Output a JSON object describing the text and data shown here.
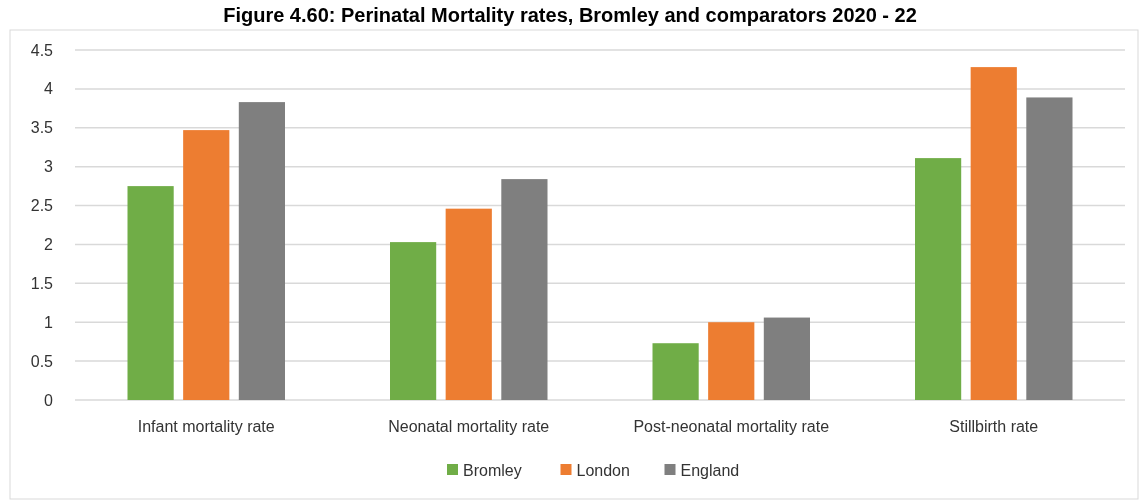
{
  "chart_data": {
    "type": "bar",
    "title": "Figure 4.60: Perinatal Mortality rates, Bromley and comparators 2020 - 22",
    "categories": [
      "Infant mortality rate",
      "Neonatal mortality rate",
      "Post-neonatal mortality rate",
      "Stillbirth rate"
    ],
    "series": [
      {
        "name": "Bromley",
        "color": "#70ad47",
        "values": [
          2.75,
          2.03,
          0.73,
          3.11
        ]
      },
      {
        "name": "London",
        "color": "#ed7d31",
        "values": [
          3.47,
          2.46,
          1.0,
          4.28
        ]
      },
      {
        "name": "England",
        "color": "#7f7f7f",
        "values": [
          3.83,
          2.84,
          1.06,
          3.89
        ]
      }
    ],
    "ylim": [
      0,
      4.5
    ],
    "yticks": [
      0,
      0.5,
      1,
      1.5,
      2,
      2.5,
      3,
      3.5,
      4,
      4.5
    ],
    "grid": "y",
    "legend": "bottom"
  }
}
